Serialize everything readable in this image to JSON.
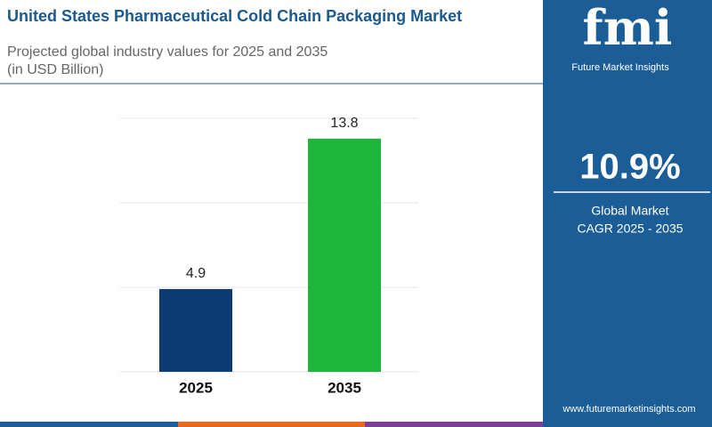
{
  "chart_data": {
    "type": "bar",
    "title": "United States Pharmaceutical Cold Chain Packaging Market",
    "subtitle": [
      "Projected global industry values for 2025 and 2035",
      "(in USD Billion)"
    ],
    "categories": [
      "2025",
      "2035"
    ],
    "values": [
      4.9,
      13.8
    ],
    "colors": [
      "#0c3a72",
      "#1db53a"
    ],
    "ylim": [
      0,
      15
    ],
    "yticks": [
      0,
      5,
      10,
      15
    ],
    "grid": true
  },
  "sidebar": {
    "logo": "fmi",
    "brand": "Future Market Insights",
    "cagr": "10.9%",
    "cagr_caption": [
      "Global Market",
      "CAGR 2025 - 2035"
    ],
    "url": "www.futuremarketinsights.com"
  }
}
